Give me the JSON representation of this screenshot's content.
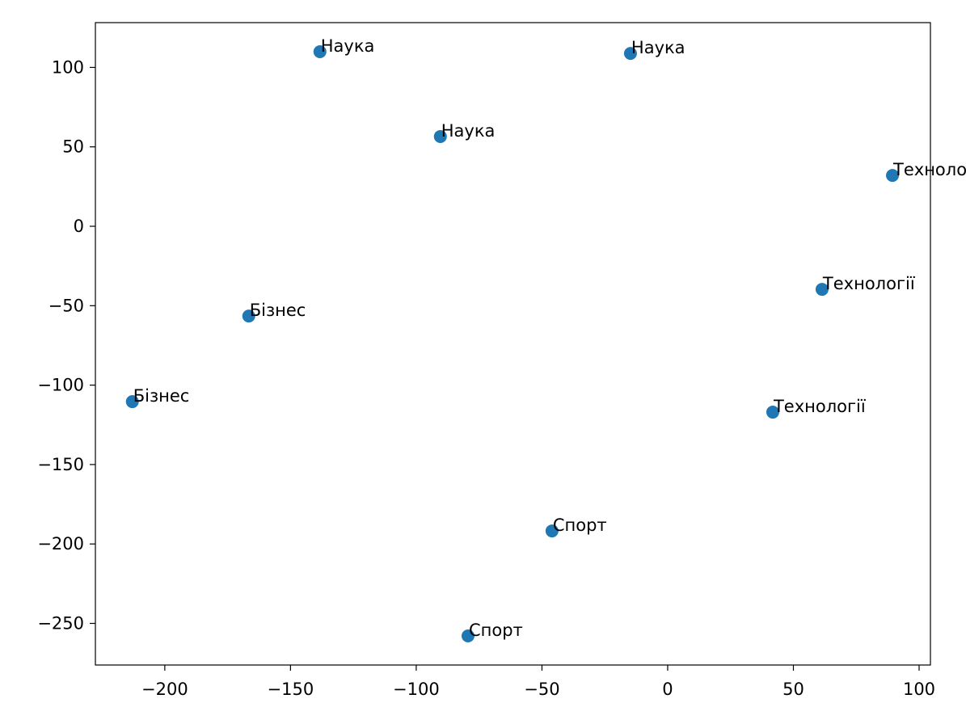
{
  "chart_data": {
    "type": "scatter",
    "x": [
      -138.3,
      -14.8,
      -90.4,
      89.4,
      61.4,
      -166.6,
      -212.9,
      41.8,
      -46.0,
      -79.4
    ],
    "values": [
      109.9,
      108.8,
      56.5,
      32.0,
      -39.7,
      -56.5,
      -110.4,
      -117.0,
      -191.8,
      -257.9
    ],
    "labels": [
      "Наука",
      "Наука",
      "Наука",
      "Технології",
      "Технології",
      "Бізнес",
      "Бізнес",
      "Технології",
      "Спорт",
      "Спорт"
    ],
    "color": "#1f77b4",
    "xlim": [
      -227.6,
      104.5
    ],
    "ylim": [
      -276.2,
      128.2
    ],
    "xticks": [
      {
        "value": -200,
        "label": "−200"
      },
      {
        "value": -150,
        "label": "−150"
      },
      {
        "value": -100,
        "label": "−100"
      },
      {
        "value": -50,
        "label": "−50"
      },
      0,
      50,
      100
    ],
    "yticks": [
      {
        "value": -250,
        "label": "−250"
      },
      {
        "value": -200,
        "label": "−200"
      },
      {
        "value": -150,
        "label": "−150"
      },
      {
        "value": -100,
        "label": "−100"
      },
      {
        "value": -50,
        "label": "−50"
      },
      0,
      50,
      100
    ],
    "grid": false
  }
}
